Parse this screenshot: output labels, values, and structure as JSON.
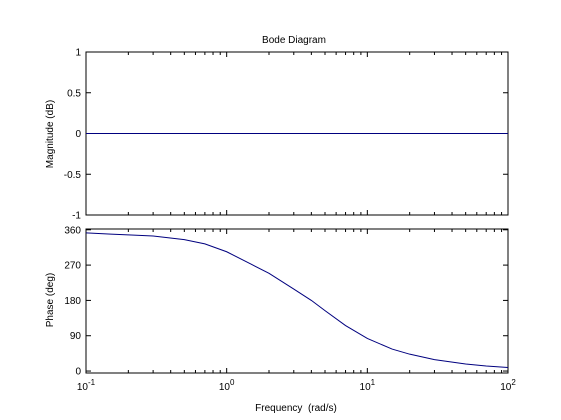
{
  "chart_data": [
    {
      "type": "line",
      "title": "Bode Diagram",
      "ylabel": "Magnitude (dB)",
      "xlabel": "",
      "xscale": "log",
      "xlim": [
        0.1,
        100
      ],
      "ylim": [
        -1,
        1
      ],
      "yticks": [
        "1",
        "0.5",
        "0",
        "-0.5",
        "-1"
      ],
      "ytick_values": [
        1,
        0.5,
        0,
        -0.5,
        -1
      ],
      "grid": false,
      "series": [
        {
          "x": [
            0.1,
            100
          ],
          "y": [
            0,
            0
          ]
        }
      ]
    },
    {
      "type": "line",
      "title": "",
      "ylabel": "Phase (deg)",
      "xlabel": "Frequency  (rad/s)",
      "xscale": "log",
      "xlim": [
        0.1,
        100
      ],
      "ylim": [
        -5,
        362
      ],
      "yticks": [
        "360",
        "270",
        "180",
        "90",
        "0"
      ],
      "ytick_values": [
        360,
        270,
        180,
        90,
        0
      ],
      "xticks": [
        {
          "base": "10",
          "exp": "-1",
          "value": 0.1
        },
        {
          "base": "10",
          "exp": "0",
          "value": 1
        },
        {
          "base": "10",
          "exp": "1",
          "value": 10
        },
        {
          "base": "10",
          "exp": "2",
          "value": 100
        }
      ],
      "grid": false,
      "series": [
        {
          "x": [
            0.1,
            0.15,
            0.2,
            0.3,
            0.5,
            0.7,
            1,
            1.5,
            2,
            3,
            4,
            5,
            7,
            10,
            15,
            20,
            30,
            50,
            70,
            100
          ],
          "y": [
            352,
            349,
            347,
            344,
            335,
            324,
            304,
            272,
            249,
            209,
            180,
            154,
            116,
            83,
            56,
            43,
            29,
            18,
            13,
            9
          ]
        }
      ]
    }
  ],
  "colors": {
    "line": "#00007f",
    "axes": "#000000",
    "background": "#ffffff"
  }
}
